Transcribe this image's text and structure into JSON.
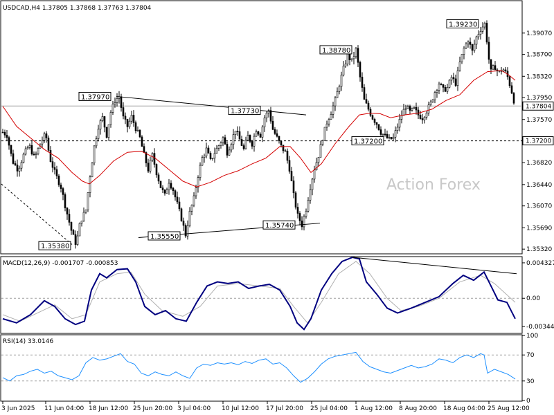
{
  "chart_data": {
    "type": "candlestick",
    "symbol_header": "USDCAD,H4  1.37805 1.37868 1.37763 1.37804",
    "watermark": "Action Forex",
    "current_price": "1.37804",
    "price_axis": {
      "ticks": [
        "1.39070",
        "1.38700",
        "1.38320",
        "1.37950",
        "1.37570",
        "1.37200",
        "1.36820",
        "1.36440",
        "1.36070",
        "1.35690",
        "1.35320"
      ],
      "min": 1.3525,
      "max": 1.3962
    },
    "time_axis": [
      "3 Jun 2025",
      "11 Jun 04:00",
      "18 Jun 12:00",
      "25 Jun 20:00",
      "3 Jul 04:00",
      "10 Jul 12:00",
      "17 Jul 20:00",
      "25 Jul 04:00",
      "1 Aug 12:00",
      "8 Aug 20:00",
      "18 Aug 04:00",
      "25 Aug 12:00"
    ],
    "price_labels": [
      "1.37970",
      "1.37730",
      "1.35380",
      "1.35550",
      "1.35740",
      "1.38780",
      "1.37200",
      "1.39230"
    ],
    "support_level": "1.37200",
    "price_path": [
      [
        0,
        1.3735
      ],
      [
        6,
        1.373
      ],
      [
        14,
        1.3685
      ],
      [
        22,
        1.367
      ],
      [
        30,
        1.3695
      ],
      [
        38,
        1.3712
      ],
      [
        46,
        1.369
      ],
      [
        54,
        1.3715
      ],
      [
        62,
        1.3732
      ],
      [
        68,
        1.369
      ],
      [
        76,
        1.3662
      ],
      [
        84,
        1.364
      ],
      [
        92,
        1.3598
      ],
      [
        100,
        1.356
      ],
      [
        106,
        1.354
      ],
      [
        112,
        1.358
      ],
      [
        120,
        1.36
      ],
      [
        126,
        1.366
      ],
      [
        132,
        1.371
      ],
      [
        138,
        1.3745
      ],
      [
        144,
        1.376
      ],
      [
        150,
        1.373
      ],
      [
        156,
        1.377
      ],
      [
        162,
        1.379
      ],
      [
        168,
        1.3797
      ],
      [
        174,
        1.376
      ],
      [
        180,
        1.3745
      ],
      [
        186,
        1.3762
      ],
      [
        192,
        1.3742
      ],
      [
        198,
        1.3725
      ],
      [
        204,
        1.3695
      ],
      [
        210,
        1.367
      ],
      [
        216,
        1.3695
      ],
      [
        222,
        1.3665
      ],
      [
        228,
        1.364
      ],
      [
        234,
        1.3625
      ],
      [
        240,
        1.365
      ],
      [
        246,
        1.3635
      ],
      [
        252,
        1.361
      ],
      [
        258,
        1.3585
      ],
      [
        264,
        1.3557
      ],
      [
        270,
        1.3595
      ],
      [
        276,
        1.362
      ],
      [
        282,
        1.366
      ],
      [
        288,
        1.369
      ],
      [
        294,
        1.3705
      ],
      [
        300,
        1.3685
      ],
      [
        306,
        1.37
      ],
      [
        312,
        1.3712
      ],
      [
        318,
        1.3725
      ],
      [
        324,
        1.37
      ],
      [
        330,
        1.3718
      ],
      [
        336,
        1.374
      ],
      [
        342,
        1.3722
      ],
      [
        348,
        1.3705
      ],
      [
        354,
        1.3728
      ],
      [
        360,
        1.3715
      ],
      [
        366,
        1.374
      ],
      [
        372,
        1.373
      ],
      [
        378,
        1.376
      ],
      [
        384,
        1.3773
      ],
      [
        390,
        1.374
      ],
      [
        396,
        1.3725
      ],
      [
        402,
        1.371
      ],
      [
        408,
        1.37
      ],
      [
        414,
        1.3672
      ],
      [
        420,
        1.3625
      ],
      [
        426,
        1.359
      ],
      [
        432,
        1.3574
      ],
      [
        438,
        1.3602
      ],
      [
        444,
        1.364
      ],
      [
        450,
        1.3672
      ],
      [
        456,
        1.3695
      ],
      [
        462,
        1.3725
      ],
      [
        468,
        1.3752
      ],
      [
        474,
        1.377
      ],
      [
        480,
        1.379
      ],
      [
        486,
        1.3818
      ],
      [
        492,
        1.3845
      ],
      [
        498,
        1.3868
      ],
      [
        504,
        1.3858
      ],
      [
        510,
        1.3878
      ],
      [
        516,
        1.383
      ],
      [
        522,
        1.379
      ],
      [
        528,
        1.3775
      ],
      [
        534,
        1.376
      ],
      [
        540,
        1.375
      ],
      [
        546,
        1.3735
      ],
      [
        552,
        1.3728
      ],
      [
        558,
        1.3722
      ],
      [
        564,
        1.3725
      ],
      [
        570,
        1.3745
      ],
      [
        576,
        1.3765
      ],
      [
        582,
        1.378
      ],
      [
        588,
        1.377
      ],
      [
        594,
        1.3775
      ],
      [
        600,
        1.3765
      ],
      [
        606,
        1.376
      ],
      [
        612,
        1.3772
      ],
      [
        618,
        1.3785
      ],
      [
        624,
        1.3805
      ],
      [
        630,
        1.382
      ],
      [
        636,
        1.3808
      ],
      [
        642,
        1.3812
      ],
      [
        648,
        1.383
      ],
      [
        654,
        1.382
      ],
      [
        660,
        1.3855
      ],
      [
        666,
        1.388
      ],
      [
        672,
        1.3895
      ],
      [
        678,
        1.3875
      ],
      [
        684,
        1.39
      ],
      [
        690,
        1.3914
      ],
      [
        696,
        1.3923
      ],
      [
        700,
        1.3885
      ],
      [
        704,
        1.3838
      ],
      [
        710,
        1.385
      ],
      [
        716,
        1.3838
      ],
      [
        722,
        1.3845
      ],
      [
        728,
        1.3835
      ],
      [
        734,
        1.381
      ],
      [
        740,
        1.378
      ]
    ],
    "ma_path": [
      [
        0,
        1.378
      ],
      [
        20,
        1.3745
      ],
      [
        40,
        1.3725
      ],
      [
        60,
        1.3705
      ],
      [
        80,
        1.369
      ],
      [
        100,
        1.3665
      ],
      [
        115,
        1.365
      ],
      [
        125,
        1.3645
      ],
      [
        140,
        1.366
      ],
      [
        160,
        1.3685
      ],
      [
        180,
        1.37
      ],
      [
        200,
        1.3702
      ],
      [
        220,
        1.369
      ],
      [
        240,
        1.367
      ],
      [
        260,
        1.365
      ],
      [
        280,
        1.364
      ],
      [
        300,
        1.3648
      ],
      [
        320,
        1.366
      ],
      [
        340,
        1.3668
      ],
      [
        360,
        1.368
      ],
      [
        380,
        1.369
      ],
      [
        400,
        1.371
      ],
      [
        415,
        1.371
      ],
      [
        430,
        1.369
      ],
      [
        445,
        1.3665
      ],
      [
        460,
        1.368
      ],
      [
        480,
        1.3715
      ],
      [
        500,
        1.3745
      ],
      [
        515,
        1.3765
      ],
      [
        530,
        1.3768
      ],
      [
        545,
        1.3767
      ],
      [
        560,
        1.376
      ],
      [
        580,
        1.3765
      ],
      [
        600,
        1.3768
      ],
      [
        620,
        1.3775
      ],
      [
        640,
        1.379
      ],
      [
        660,
        1.38
      ],
      [
        680,
        1.3825
      ],
      [
        700,
        1.384
      ],
      [
        720,
        1.3842
      ],
      [
        730,
        1.3835
      ],
      [
        740,
        1.3825
      ]
    ],
    "macd": {
      "title": "MACD(12,26,9) -0.001707 -0.000853",
      "axis_ticks": [
        "0.004327",
        "0.00",
        "-0.003444"
      ],
      "min": -0.0042,
      "max": 0.005,
      "main_path": [
        [
          0,
          -0.0025
        ],
        [
          20,
          -0.003
        ],
        [
          40,
          -0.002
        ],
        [
          60,
          -0.0003
        ],
        [
          75,
          -0.001
        ],
        [
          90,
          -0.0025
        ],
        [
          105,
          -0.0032
        ],
        [
          118,
          -0.0028
        ],
        [
          128,
          0.001
        ],
        [
          140,
          0.003
        ],
        [
          150,
          0.0025
        ],
        [
          165,
          0.0035
        ],
        [
          180,
          0.0036
        ],
        [
          192,
          0.002
        ],
        [
          205,
          -0.001
        ],
        [
          220,
          -0.002
        ],
        [
          235,
          -0.0015
        ],
        [
          250,
          -0.0025
        ],
        [
          265,
          -0.0028
        ],
        [
          280,
          -0.0005
        ],
        [
          295,
          0.0015
        ],
        [
          310,
          0.002
        ],
        [
          325,
          0.0018
        ],
        [
          340,
          0.002
        ],
        [
          355,
          0.0012
        ],
        [
          370,
          0.0015
        ],
        [
          385,
          0.0017
        ],
        [
          400,
          0.001
        ],
        [
          415,
          -0.001
        ],
        [
          425,
          -0.003
        ],
        [
          435,
          -0.0038
        ],
        [
          445,
          -0.0025
        ],
        [
          460,
          0.001
        ],
        [
          475,
          0.003
        ],
        [
          490,
          0.0045
        ],
        [
          505,
          0.005
        ],
        [
          515,
          0.0048
        ],
        [
          525,
          0.002
        ],
        [
          540,
          0.0005
        ],
        [
          555,
          -0.0012
        ],
        [
          570,
          -0.0018
        ],
        [
          590,
          -0.0012
        ],
        [
          610,
          -0.0005
        ],
        [
          630,
          0.0002
        ],
        [
          650,
          0.0018
        ],
        [
          665,
          0.0028
        ],
        [
          680,
          0.0022
        ],
        [
          695,
          0.0032
        ],
        [
          705,
          0.0015
        ],
        [
          715,
          -0.0002
        ],
        [
          728,
          -0.0005
        ],
        [
          740,
          -0.0025
        ]
      ],
      "signal_path": [
        [
          0,
          -0.002
        ],
        [
          25,
          -0.0028
        ],
        [
          50,
          -0.0018
        ],
        [
          75,
          -0.0008
        ],
        [
          100,
          -0.0025
        ],
        [
          120,
          -0.002
        ],
        [
          140,
          0.002
        ],
        [
          165,
          0.003
        ],
        [
          185,
          0.0032
        ],
        [
          205,
          0.0005
        ],
        [
          230,
          -0.0015
        ],
        [
          260,
          -0.0022
        ],
        [
          285,
          -0.001
        ],
        [
          310,
          0.0015
        ],
        [
          340,
          0.0018
        ],
        [
          370,
          0.0015
        ],
        [
          400,
          0.0012
        ],
        [
          420,
          -0.001
        ],
        [
          440,
          -0.003
        ],
        [
          460,
          -0.0005
        ],
        [
          485,
          0.003
        ],
        [
          510,
          0.0045
        ],
        [
          530,
          0.003
        ],
        [
          555,
          0.0
        ],
        [
          575,
          -0.0015
        ],
        [
          600,
          -0.001
        ],
        [
          630,
          0.0
        ],
        [
          660,
          0.002
        ],
        [
          690,
          0.0028
        ],
        [
          710,
          0.0018
        ],
        [
          740,
          -0.0005
        ]
      ]
    },
    "rsi": {
      "title": "RSI(14) 33.0146",
      "axis_ticks": [
        "100",
        "70",
        "30",
        "0"
      ],
      "path": [
        [
          0,
          35
        ],
        [
          10,
          30
        ],
        [
          20,
          38
        ],
        [
          30,
          40
        ],
        [
          40,
          45
        ],
        [
          50,
          48
        ],
        [
          60,
          42
        ],
        [
          70,
          45
        ],
        [
          80,
          38
        ],
        [
          90,
          35
        ],
        [
          100,
          32
        ],
        [
          110,
          38
        ],
        [
          120,
          58
        ],
        [
          130,
          66
        ],
        [
          140,
          62
        ],
        [
          150,
          64
        ],
        [
          160,
          68
        ],
        [
          170,
          72
        ],
        [
          180,
          60
        ],
        [
          190,
          56
        ],
        [
          200,
          42
        ],
        [
          210,
          38
        ],
        [
          220,
          44
        ],
        [
          230,
          40
        ],
        [
          240,
          38
        ],
        [
          250,
          44
        ],
        [
          260,
          38
        ],
        [
          270,
          34
        ],
        [
          280,
          50
        ],
        [
          290,
          56
        ],
        [
          300,
          54
        ],
        [
          310,
          58
        ],
        [
          320,
          56
        ],
        [
          330,
          58
        ],
        [
          340,
          55
        ],
        [
          350,
          60
        ],
        [
          360,
          57
        ],
        [
          370,
          62
        ],
        [
          380,
          64
        ],
        [
          390,
          56
        ],
        [
          400,
          58
        ],
        [
          410,
          50
        ],
        [
          420,
          38
        ],
        [
          430,
          28
        ],
        [
          440,
          34
        ],
        [
          450,
          44
        ],
        [
          460,
          56
        ],
        [
          470,
          64
        ],
        [
          480,
          68
        ],
        [
          490,
          70
        ],
        [
          500,
          72
        ],
        [
          510,
          74
        ],
        [
          520,
          60
        ],
        [
          530,
          52
        ],
        [
          540,
          48
        ],
        [
          550,
          44
        ],
        [
          560,
          42
        ],
        [
          570,
          46
        ],
        [
          580,
          50
        ],
        [
          590,
          54
        ],
        [
          600,
          50
        ],
        [
          610,
          52
        ],
        [
          620,
          56
        ],
        [
          630,
          64
        ],
        [
          640,
          62
        ],
        [
          650,
          58
        ],
        [
          660,
          66
        ],
        [
          670,
          70
        ],
        [
          680,
          66
        ],
        [
          690,
          72
        ],
        [
          695,
          70
        ],
        [
          700,
          42
        ],
        [
          710,
          48
        ],
        [
          720,
          44
        ],
        [
          730,
          40
        ],
        [
          740,
          33
        ]
      ]
    }
  }
}
